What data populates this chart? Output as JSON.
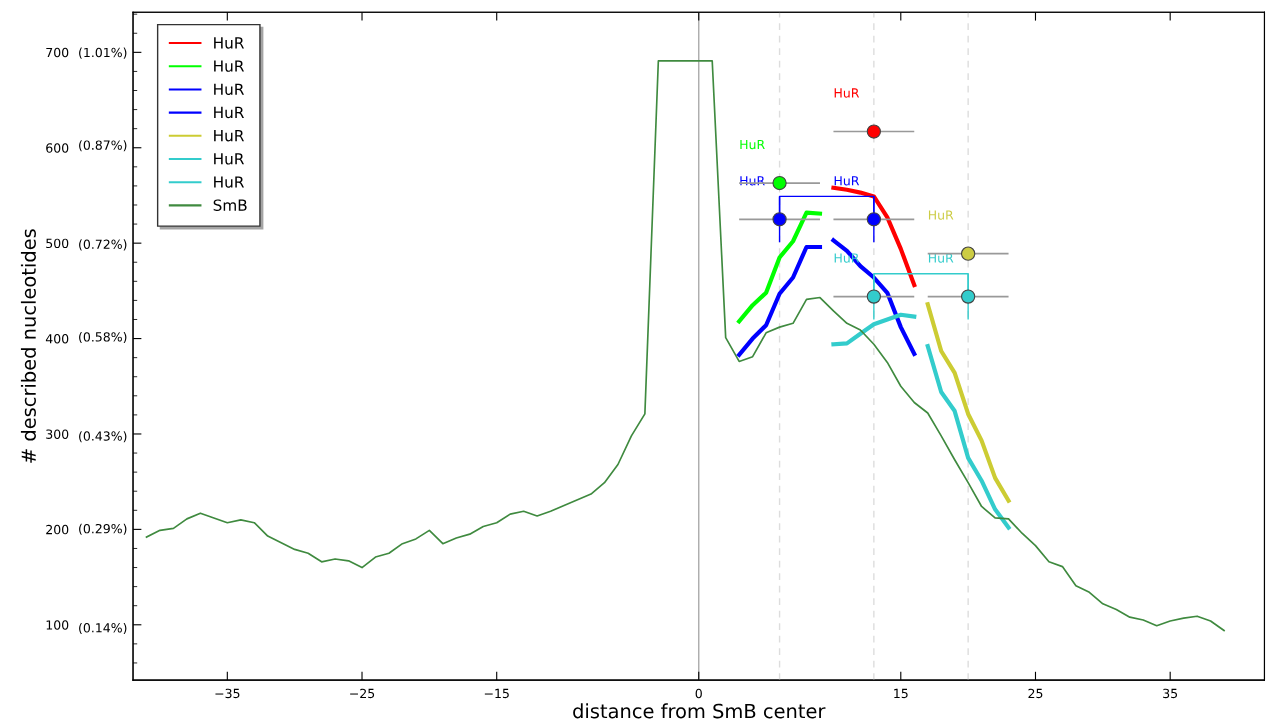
{
  "chart_data": {
    "type": "line",
    "xlabel": "distance from SmB center",
    "ylabel": "# described nucleotides",
    "xlim": [
      -42,
      42
    ],
    "ylim": [
      42,
      742
    ],
    "y2lim": [
      0.0606,
      1.0706
    ],
    "xticks": [
      -35,
      -25,
      -15,
      0,
      15,
      25,
      35
    ],
    "yticks": [
      100,
      200,
      300,
      400,
      500,
      600,
      700
    ],
    "y2ticks": [
      {
        "value": 0.14,
        "label": "(0.14%)"
      },
      {
        "value": 0.29,
        "label": "(0.29%)"
      },
      {
        "value": 0.43,
        "label": "(0.43%)"
      },
      {
        "value": 0.58,
        "label": "(0.58%)"
      },
      {
        "value": 0.72,
        "label": "(0.72%)"
      },
      {
        "value": 0.87,
        "label": "(0.87%)"
      },
      {
        "value": 1.01,
        "label": "(1.01%)"
      }
    ],
    "annotations": [
      {
        "text": "HuR",
        "x": 13,
        "y": 617
      },
      {
        "text": "HuR",
        "x": 6,
        "y": 563
      },
      {
        "text": "HuR",
        "x": 6,
        "y": 525
      },
      {
        "text": "HuR",
        "x": 13,
        "y": 525
      },
      {
        "text": "HuR",
        "x": 20,
        "y": 489
      },
      {
        "text": "HuR",
        "x": 13,
        "y": 444
      },
      {
        "text": "HuR",
        "x": 20,
        "y": 444
      }
    ],
    "grid": false,
    "legend": "top left",
    "marker": "none",
    "line_style": "solid",
    "ref_lines": [
      {
        "axis": "x",
        "value": 0,
        "color": "#aaaaaa",
        "line_style": "solid"
      },
      {
        "axis": "x",
        "value": 6,
        "color": "#dddddd",
        "line_style": "dashed"
      },
      {
        "axis": "x",
        "value": 13,
        "color": "#dddddd",
        "line_style": "dashed"
      },
      {
        "axis": "x",
        "value": 20,
        "color": "#dddddd",
        "line_style": "dashed"
      }
    ],
    "series": [
      {
        "name": "HuR",
        "color": "#ff0000",
        "x": [
          10,
          11,
          12,
          13,
          14,
          15,
          16
        ],
        "values": [
          558,
          556,
          553,
          549,
          527,
          494,
          456
        ]
      },
      {
        "name": "HuR",
        "color": "#00ff00",
        "x": [
          3,
          4,
          5,
          6,
          7,
          8,
          9
        ],
        "values": [
          418,
          435,
          448,
          485,
          502,
          532,
          531
        ]
      },
      {
        "name": "HuR",
        "color": "#0000ff",
        "x": [
          3,
          4,
          5,
          6,
          7,
          8,
          9
        ],
        "values": [
          383,
          400,
          414,
          447,
          464,
          496,
          496
        ]
      },
      {
        "name": "HuR",
        "color": "#0000ff",
        "x": [
          10,
          11,
          12,
          13,
          14,
          15,
          16
        ],
        "values": [
          503,
          492,
          476,
          464,
          448,
          412,
          384
        ]
      },
      {
        "name": "HuR",
        "color": "#cccc33",
        "x": [
          17,
          18,
          19,
          20,
          21,
          22,
          23
        ],
        "values": [
          436,
          387,
          364,
          321,
          293,
          254,
          230
        ]
      },
      {
        "name": "HuR",
        "color": "#33cccc",
        "x": [
          10,
          11,
          12,
          13,
          14,
          15,
          16
        ],
        "values": [
          394,
          395,
          405,
          415,
          420,
          425,
          423
        ]
      },
      {
        "name": "HuR",
        "color": "#33cccc",
        "x": [
          17,
          18,
          19,
          20,
          21,
          22,
          23
        ],
        "values": [
          392,
          344,
          324,
          275,
          251,
          221,
          202
        ]
      },
      {
        "name": "SmB",
        "color": "#3f8a3f",
        "x": [
          -41,
          -40,
          -39,
          -38,
          -37,
          -36,
          -35,
          -34,
          -33,
          -32,
          -31,
          -30,
          -29,
          -28,
          -27,
          -26,
          -25,
          -24,
          -23,
          -22,
          -21,
          -20,
          -19,
          -18,
          -17,
          -16,
          -15,
          -14,
          -13,
          -12,
          -11,
          -10,
          -9,
          -8,
          -7,
          -6,
          -5,
          -4,
          -3,
          -2,
          -1,
          0,
          1,
          2,
          3,
          4,
          5,
          6,
          7,
          8,
          9,
          10,
          11,
          12,
          13,
          14,
          15,
          16,
          17,
          18,
          19,
          20,
          21,
          22,
          23,
          24,
          25,
          26,
          27,
          28,
          29,
          30,
          31,
          32,
          33,
          34,
          35,
          36,
          37,
          38,
          39
        ],
        "values": [
          192,
          199,
          201,
          211,
          217,
          212,
          207,
          210,
          207,
          193,
          186,
          179,
          175,
          166,
          169,
          167,
          160,
          171,
          175,
          185,
          190,
          199,
          185,
          191,
          195,
          203,
          207,
          216,
          219,
          214,
          219,
          225,
          231,
          237,
          249,
          268,
          298,
          321,
          691,
          691,
          691,
          691,
          691,
          401,
          376,
          381,
          406,
          412,
          416,
          441,
          443,
          429,
          416,
          409,
          394,
          375,
          350,
          333,
          322,
          298,
          273,
          249,
          224,
          212,
          211,
          196,
          183,
          166,
          161,
          141,
          134,
          122,
          116,
          108,
          105,
          99,
          104,
          107,
          109,
          104,
          94
        ]
      },
      {
        "type": "scatter",
        "marker": "circle",
        "color": "#ff0000",
        "x": [
          13
        ],
        "values": [
          617
        ],
        "xerrors": [
          3
        ]
      },
      {
        "type": "scatter",
        "marker": "circle",
        "color": "#00ff00",
        "x": [
          6
        ],
        "values": [
          563
        ],
        "xerrors": [
          3
        ]
      },
      {
        "type": "scatter",
        "marker": "circle",
        "color": "#0000ff",
        "x": [
          6,
          13
        ],
        "values": [
          525,
          525
        ],
        "xerrors": [
          3,
          3
        ],
        "errors": [
          24,
          24
        ]
      },
      {
        "type": "scatter",
        "marker": "circle",
        "color": "#cccc44",
        "x": [
          20
        ],
        "values": [
          489
        ],
        "xerrors": [
          3
        ]
      },
      {
        "type": "scatter",
        "marker": "circle",
        "color": "#33cccc",
        "x": [
          13,
          20
        ],
        "values": [
          444,
          444
        ],
        "xerrors": [
          3,
          3
        ],
        "errors": [
          24,
          24
        ]
      }
    ]
  }
}
